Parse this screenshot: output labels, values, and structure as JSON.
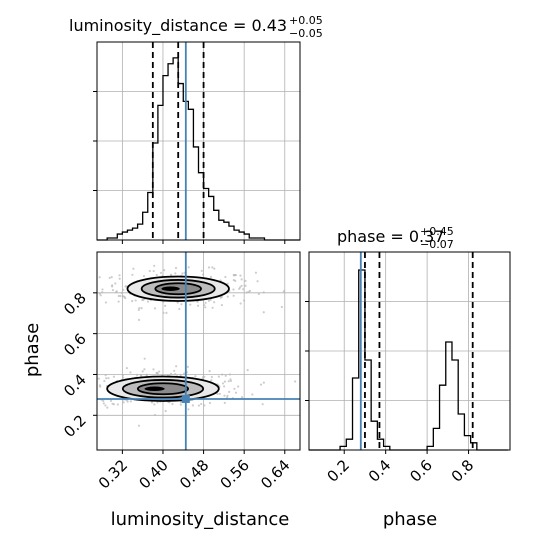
{
  "chart_data": [
    {
      "type": "histogram",
      "title_param": "luminosity_distance",
      "title_value": "0.43",
      "title_plus": "+0.05",
      "title_minus": "−0.05",
      "xlim": [
        0.27,
        0.67
      ],
      "grid": true,
      "truth": 0.445,
      "quantiles": [
        0.38,
        0.43,
        0.48
      ],
      "bin_edges": [
        0.27,
        0.28,
        0.29,
        0.3,
        0.31,
        0.32,
        0.33,
        0.34,
        0.35,
        0.36,
        0.37,
        0.38,
        0.39,
        0.4,
        0.41,
        0.42,
        0.43,
        0.44,
        0.45,
        0.46,
        0.47,
        0.48,
        0.49,
        0.5,
        0.51,
        0.52,
        0.53,
        0.54,
        0.55,
        0.56,
        0.57,
        0.58,
        0.59,
        0.6,
        0.61,
        0.62,
        0.63,
        0.64,
        0.65,
        0.66,
        0.67
      ],
      "counts": [
        0,
        0,
        1,
        1,
        3,
        4,
        5,
        6,
        8,
        14,
        24,
        49,
        68,
        83,
        89,
        92,
        79,
        70,
        66,
        47,
        34,
        26,
        22,
        15,
        10,
        9,
        7,
        5,
        4,
        3,
        1,
        1,
        1,
        0,
        0,
        0,
        0,
        0,
        0,
        0
      ],
      "ymax": 100
    },
    {
      "type": "histogram",
      "title_param": "phase",
      "title_value": "0.37",
      "title_plus": "+0.45",
      "title_minus": "−0.07",
      "xlim": [
        0.03,
        1.0
      ],
      "grid": true,
      "truth": 0.28,
      "quantiles": [
        0.3,
        0.37,
        0.82
      ],
      "bin_edges": [
        0.03,
        0.06,
        0.09,
        0.12,
        0.15,
        0.18,
        0.21,
        0.24,
        0.27,
        0.3,
        0.33,
        0.36,
        0.39,
        0.42,
        0.45,
        0.48,
        0.51,
        0.54,
        0.57,
        0.6,
        0.63,
        0.66,
        0.69,
        0.72,
        0.75,
        0.78,
        0.81,
        0.84,
        0.87,
        0.9,
        0.93,
        0.96,
        0.99
      ],
      "counts": [
        0,
        0,
        0,
        0,
        0,
        1,
        3,
        20,
        50,
        25,
        8,
        3,
        1,
        0,
        0,
        0,
        0,
        0,
        0,
        1,
        6,
        18,
        30,
        25,
        10,
        4,
        2,
        0,
        0,
        0,
        0,
        0
      ],
      "ymax": 55
    },
    {
      "type": "2d-density",
      "xlim": [
        0.27,
        0.67
      ],
      "ylim": [
        0.03,
        1.0
      ],
      "grid": true,
      "truth": [
        0.445,
        0.28
      ],
      "blobs": [
        {
          "x": 0.43,
          "y": 0.82,
          "rx": 0.1,
          "ry": 0.06,
          "weight": 0.45
        },
        {
          "x": 0.4,
          "y": 0.33,
          "rx": 0.11,
          "ry": 0.06,
          "weight": 0.55
        }
      ]
    }
  ],
  "axes": {
    "xlabel_lum": "luminosity_distance",
    "xlabel_phase": "phase",
    "ylabel_phase": "phase",
    "lum_ticks": [
      "0.32",
      "0.40",
      "0.48",
      "0.56",
      "0.64"
    ],
    "lum_tick_values": [
      0.32,
      0.4,
      0.48,
      0.56,
      0.64
    ],
    "phase_ticks": [
      "0.2",
      "0.4",
      "0.6",
      "0.8"
    ],
    "phase_tick_values": [
      0.2,
      0.4,
      0.6,
      0.8
    ]
  },
  "colors": {
    "truth": "#4682b4",
    "line": "#000000",
    "grid": "#b0b0b0",
    "contour_fill_1": "#e9e9e9",
    "contour_fill_2": "#bdbdbd",
    "contour_fill_3": "#8a8a8a"
  }
}
